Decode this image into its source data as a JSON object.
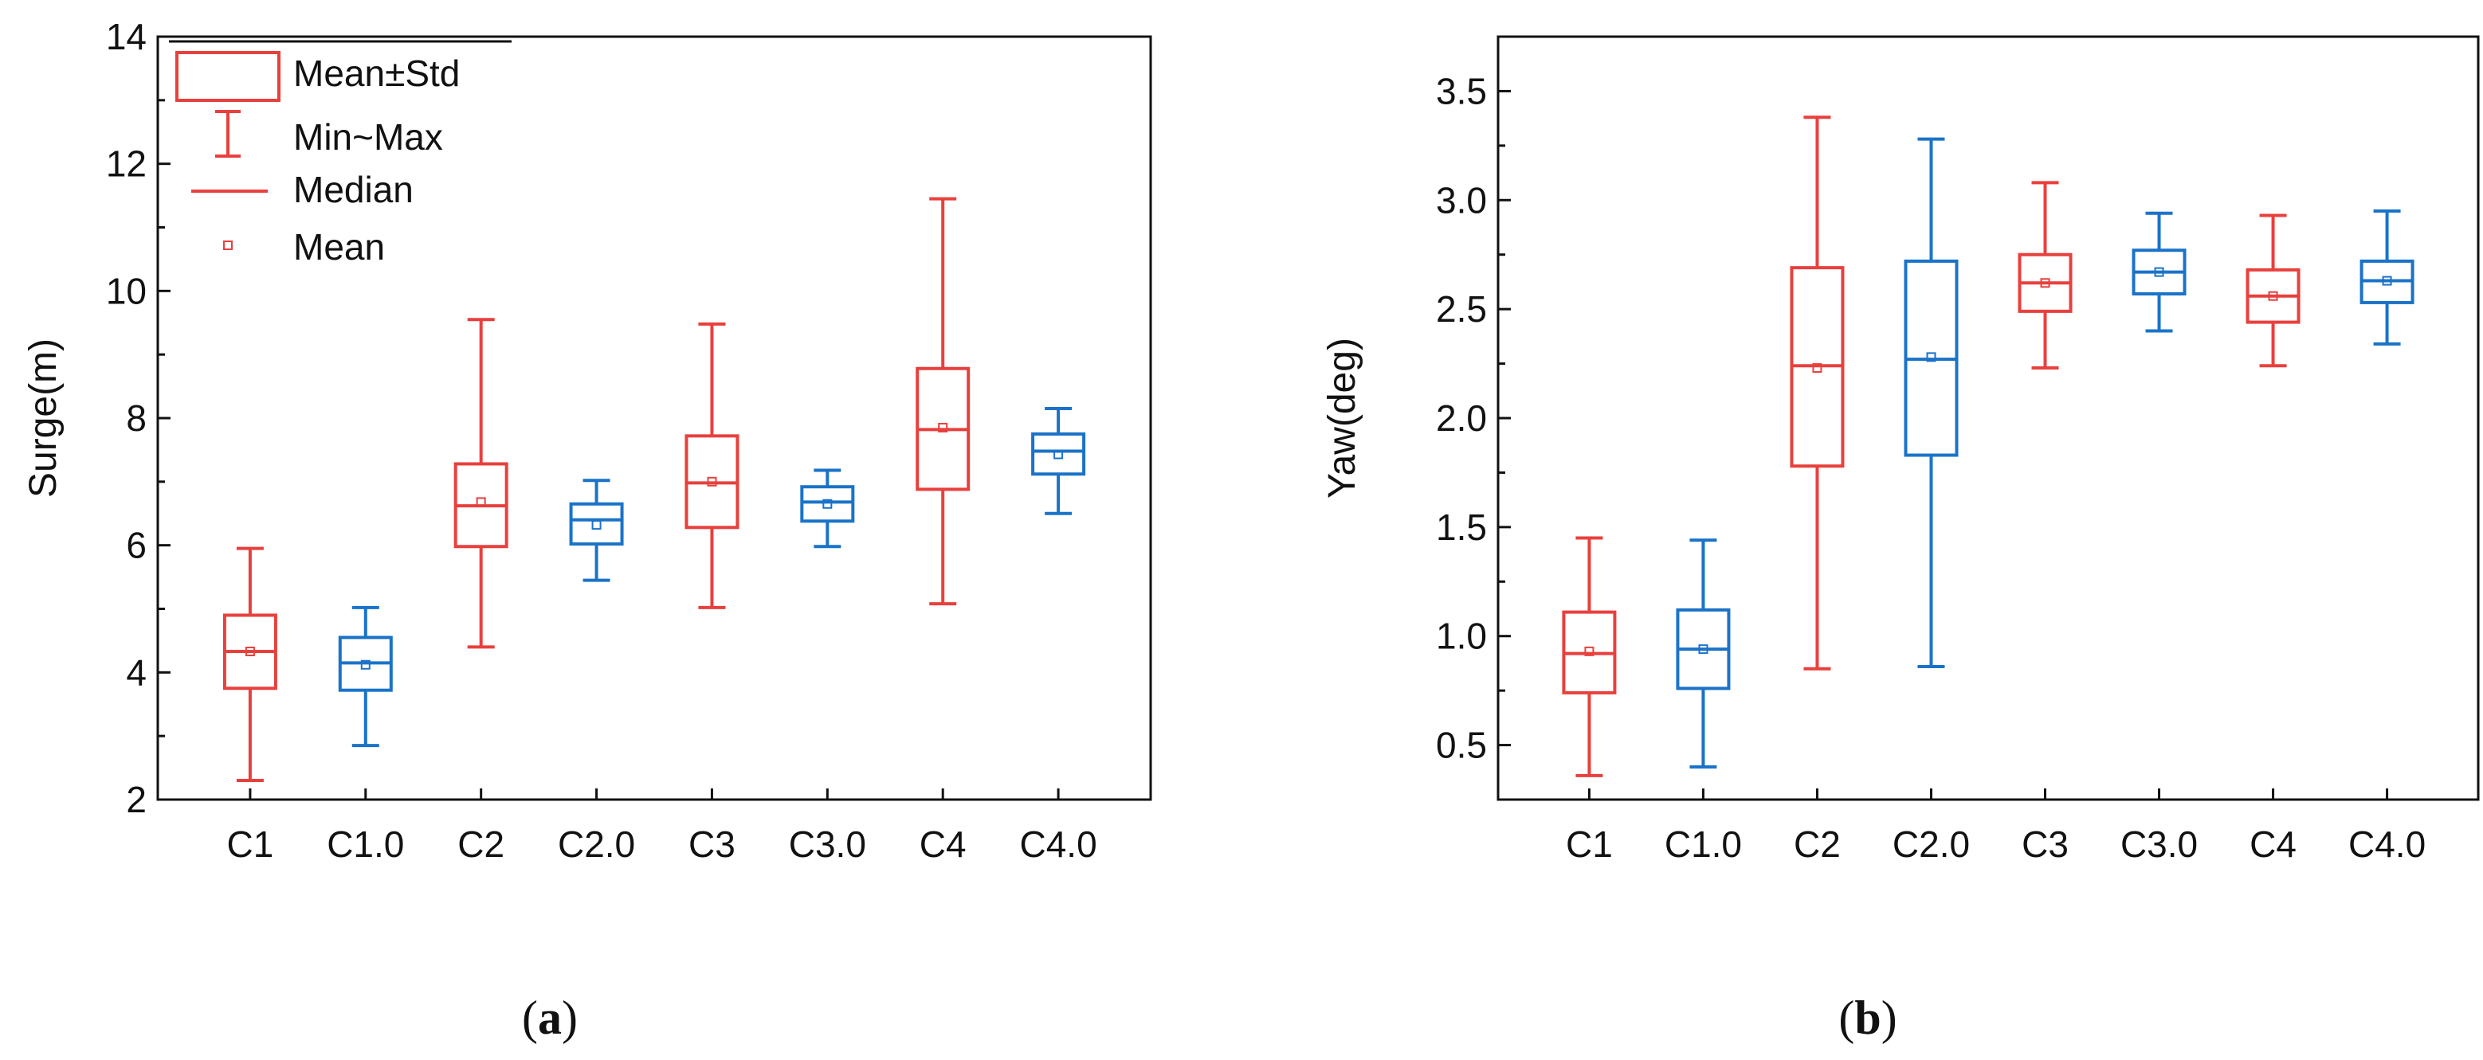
{
  "colors": {
    "red": "#e8403d",
    "blue": "#1a73c8",
    "axis": "#111111"
  },
  "legend": {
    "items": [
      {
        "type": "box",
        "label": "Mean±Std"
      },
      {
        "type": "whisker",
        "label": "Min~Max"
      },
      {
        "type": "median",
        "label": "Median"
      },
      {
        "type": "mean",
        "label": "Mean"
      }
    ]
  },
  "panels": {
    "a": {
      "label_prefix": "(",
      "label_letter": "a",
      "label_suffix": ")"
    },
    "b": {
      "label_prefix": "(",
      "label_letter": "b",
      "label_suffix": ")"
    }
  },
  "chart_data": [
    {
      "type": "box",
      "ylabel": "Surge(m)",
      "ylim": [
        2,
        14
      ],
      "yticks": [
        "2",
        "4",
        "6",
        "8",
        "10",
        "12",
        "14"
      ],
      "categories": [
        "C1",
        "C1.0",
        "C2",
        "C2.0",
        "C3",
        "C3.0",
        "C4",
        "C4.0"
      ],
      "category_colors": [
        "red",
        "blue",
        "red",
        "blue",
        "red",
        "blue",
        "red",
        "blue"
      ],
      "boxes": [
        {
          "min": 2.3,
          "q1": 3.75,
          "median": 4.33,
          "q3": 4.9,
          "max": 5.95,
          "mean": 4.33
        },
        {
          "min": 2.85,
          "q1": 3.72,
          "median": 4.15,
          "q3": 4.55,
          "max": 5.02,
          "mean": 4.12
        },
        {
          "min": 4.4,
          "q1": 5.98,
          "median": 6.62,
          "q3": 7.28,
          "max": 9.55,
          "mean": 6.68
        },
        {
          "min": 5.45,
          "q1": 6.02,
          "median": 6.4,
          "q3": 6.65,
          "max": 7.02,
          "mean": 6.32
        },
        {
          "min": 5.02,
          "q1": 6.28,
          "median": 6.98,
          "q3": 7.72,
          "max": 9.48,
          "mean": 7.0
        },
        {
          "min": 5.98,
          "q1": 6.38,
          "median": 6.68,
          "q3": 6.92,
          "max": 7.18,
          "mean": 6.65
        },
        {
          "min": 5.08,
          "q1": 6.88,
          "median": 7.82,
          "q3": 8.78,
          "max": 11.45,
          "mean": 7.85
        },
        {
          "min": 6.5,
          "q1": 7.12,
          "median": 7.48,
          "q3": 7.75,
          "max": 8.15,
          "mean": 7.43
        }
      ]
    },
    {
      "type": "box",
      "ylabel": "Yaw(deg)",
      "ylim": [
        0.25,
        3.75
      ],
      "yticks": [
        "0.5",
        "1.0",
        "1.5",
        "2.0",
        "2.5",
        "3.0",
        "3.5"
      ],
      "categories": [
        "C1",
        "C1.0",
        "C2",
        "C2.0",
        "C3",
        "C3.0",
        "C4",
        "C4.0"
      ],
      "category_colors": [
        "red",
        "blue",
        "red",
        "blue",
        "red",
        "blue",
        "red",
        "blue"
      ],
      "boxes": [
        {
          "min": 0.36,
          "q1": 0.74,
          "median": 0.92,
          "q3": 1.11,
          "max": 1.45,
          "mean": 0.93
        },
        {
          "min": 0.4,
          "q1": 0.76,
          "median": 0.94,
          "q3": 1.12,
          "max": 1.44,
          "mean": 0.94
        },
        {
          "min": 0.85,
          "q1": 1.78,
          "median": 2.24,
          "q3": 2.69,
          "max": 3.38,
          "mean": 2.23
        },
        {
          "min": 0.86,
          "q1": 1.83,
          "median": 2.27,
          "q3": 2.72,
          "max": 3.28,
          "mean": 2.28
        },
        {
          "min": 2.23,
          "q1": 2.49,
          "median": 2.62,
          "q3": 2.75,
          "max": 3.08,
          "mean": 2.62
        },
        {
          "min": 2.4,
          "q1": 2.57,
          "median": 2.67,
          "q3": 2.77,
          "max": 2.94,
          "mean": 2.67
        },
        {
          "min": 2.24,
          "q1": 2.44,
          "median": 2.56,
          "q3": 2.68,
          "max": 2.93,
          "mean": 2.56
        },
        {
          "min": 2.34,
          "q1": 2.53,
          "median": 2.63,
          "q3": 2.72,
          "max": 2.95,
          "mean": 2.63
        }
      ]
    }
  ]
}
